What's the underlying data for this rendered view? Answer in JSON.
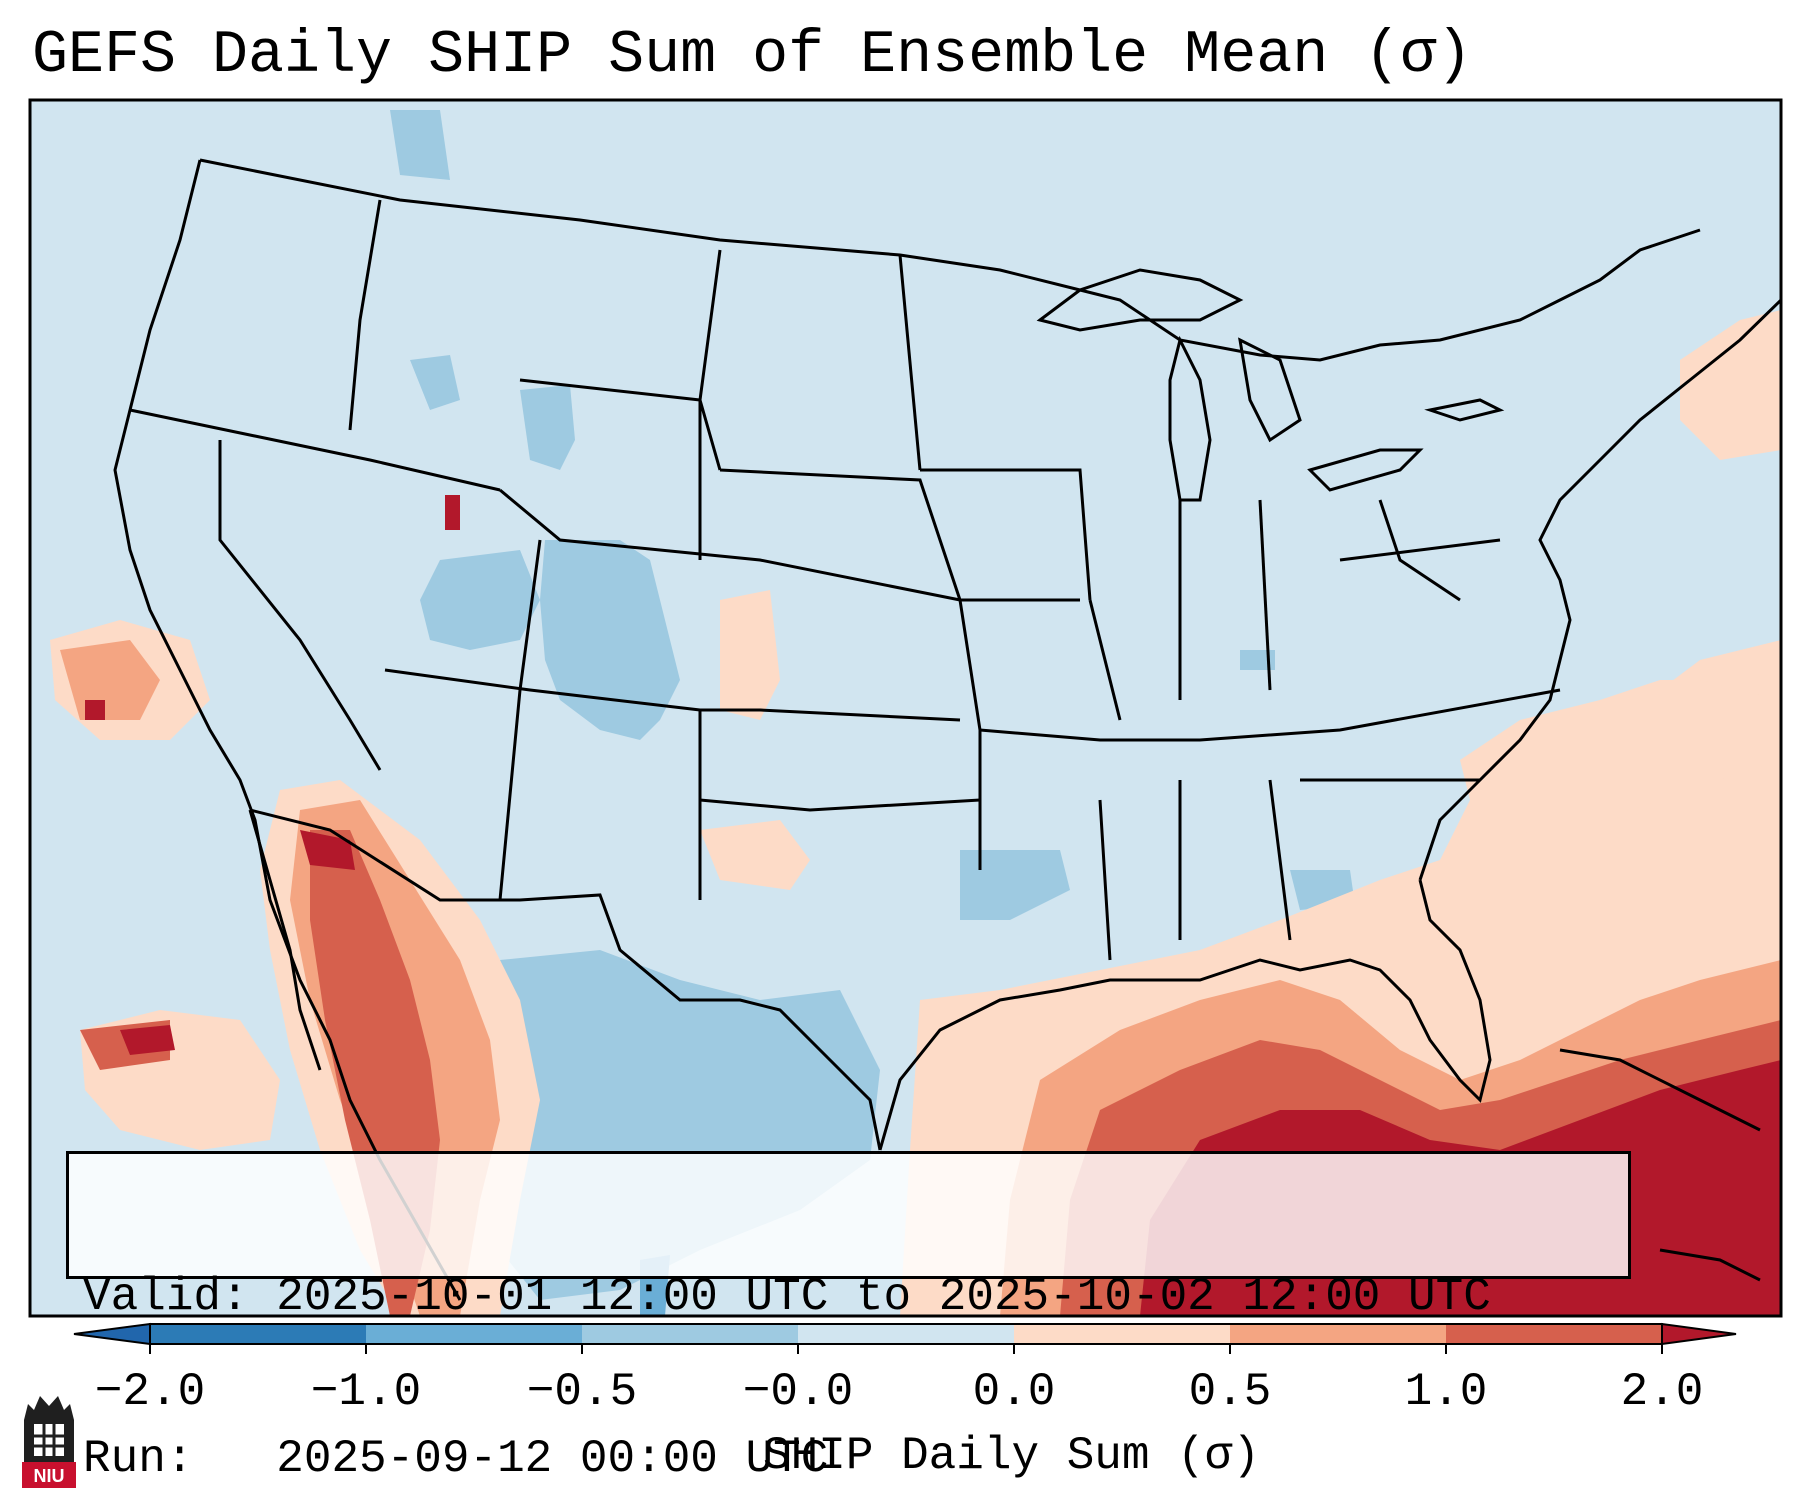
{
  "title": "GEFS Daily SHIP Sum of Ensemble Mean (σ)",
  "info": {
    "valid_line": "Valid: 2025-10-01 12:00 UTC to 2025-10-02 12:00 UTC",
    "run_line": "Run:   2025-09-12 00:00 UTC"
  },
  "colorbar": {
    "label": "SHIP Daily Sum (σ)",
    "ticks": [
      "−2.0",
      "−1.0",
      "−0.5",
      "−0.0",
      "0.0",
      "0.5",
      "1.0",
      "2.0"
    ],
    "colors": [
      "#2c7bb6",
      "#6aaed6",
      "#9ecae1",
      "#d1e5f0",
      "#fddbc7",
      "#f4a582",
      "#d6604d",
      "#b2182b"
    ],
    "under_color": "#2166ac",
    "over_color": "#8b0a1d"
  },
  "map": {
    "ocean_land_base": "#d1e5f0",
    "borders": "#000000"
  },
  "logo": {
    "text": "NIU",
    "color": "#c8102e"
  }
}
